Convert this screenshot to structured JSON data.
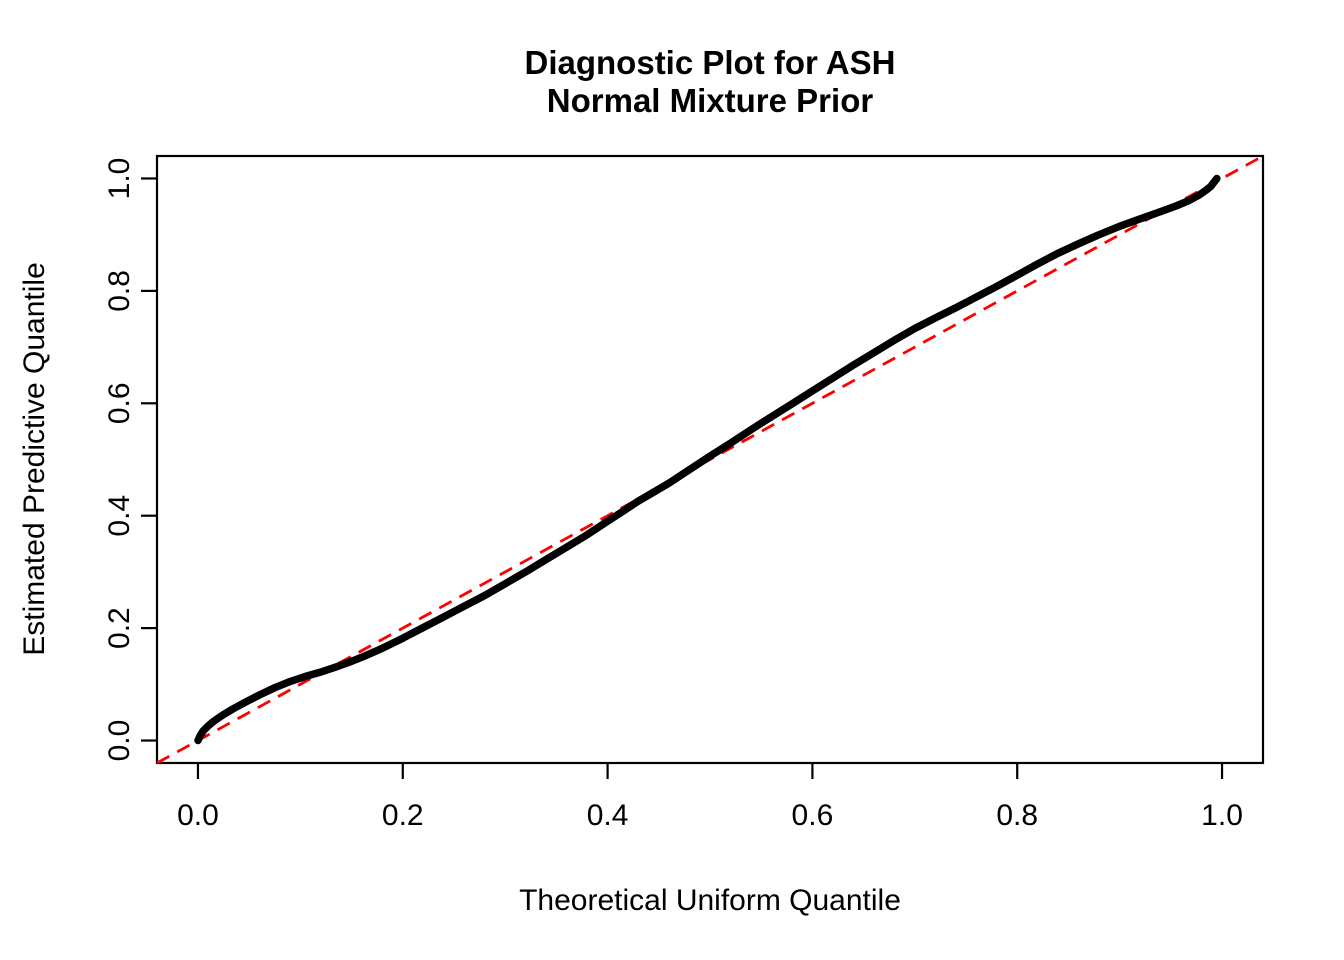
{
  "chart_data": {
    "type": "line",
    "subtype": "qq-plot",
    "title_lines": [
      "Diagnostic Plot for ASH",
      "Normal Mixture Prior"
    ],
    "xlabel": "Theoretical Uniform Quantile",
    "ylabel": "Estimated Predictive Quantile",
    "xlim": [
      -0.04,
      1.04
    ],
    "ylim": [
      -0.04,
      1.04
    ],
    "x_ticks": [
      0.0,
      0.2,
      0.4,
      0.6,
      0.8,
      1.0
    ],
    "x_tick_labels": [
      "0.0",
      "0.2",
      "0.4",
      "0.6",
      "0.8",
      "1.0"
    ],
    "y_ticks": [
      0.0,
      0.2,
      0.4,
      0.6,
      0.8,
      1.0
    ],
    "y_tick_labels": [
      "0.0",
      "0.2",
      "0.4",
      "0.6",
      "0.8",
      "1.0"
    ],
    "grid": false,
    "legend": "none",
    "background_color": "#ffffff",
    "axis_color": "#000000",
    "series": [
      {
        "name": "estimated-vs-theoretical-quantiles",
        "color": "#000000",
        "line_width": 7.5,
        "points": [
          [
            0.0,
            0.0
          ],
          [
            0.002,
            0.008
          ],
          [
            0.005,
            0.017
          ],
          [
            0.01,
            0.026
          ],
          [
            0.016,
            0.035
          ],
          [
            0.024,
            0.045
          ],
          [
            0.034,
            0.056
          ],
          [
            0.046,
            0.068
          ],
          [
            0.06,
            0.081
          ],
          [
            0.075,
            0.094
          ],
          [
            0.09,
            0.105
          ],
          [
            0.105,
            0.114
          ],
          [
            0.12,
            0.122
          ],
          [
            0.135,
            0.131
          ],
          [
            0.15,
            0.141
          ],
          [
            0.165,
            0.152
          ],
          [
            0.18,
            0.164
          ],
          [
            0.2,
            0.182
          ],
          [
            0.22,
            0.201
          ],
          [
            0.24,
            0.22
          ],
          [
            0.26,
            0.239
          ],
          [
            0.28,
            0.258
          ],
          [
            0.3,
            0.279
          ],
          [
            0.32,
            0.3
          ],
          [
            0.34,
            0.322
          ],
          [
            0.36,
            0.344
          ],
          [
            0.38,
            0.366
          ],
          [
            0.4,
            0.39
          ],
          [
            0.415,
            0.408
          ],
          [
            0.43,
            0.426
          ],
          [
            0.445,
            0.442
          ],
          [
            0.46,
            0.458
          ],
          [
            0.48,
            0.482
          ],
          [
            0.5,
            0.506
          ],
          [
            0.52,
            0.529
          ],
          [
            0.54,
            0.553
          ],
          [
            0.56,
            0.576
          ],
          [
            0.58,
            0.599
          ],
          [
            0.6,
            0.622
          ],
          [
            0.62,
            0.645
          ],
          [
            0.64,
            0.668
          ],
          [
            0.66,
            0.69
          ],
          [
            0.68,
            0.712
          ],
          [
            0.7,
            0.733
          ],
          [
            0.72,
            0.752
          ],
          [
            0.74,
            0.77
          ],
          [
            0.76,
            0.789
          ],
          [
            0.78,
            0.808
          ],
          [
            0.8,
            0.828
          ],
          [
            0.82,
            0.848
          ],
          [
            0.84,
            0.867
          ],
          [
            0.86,
            0.884
          ],
          [
            0.88,
            0.9
          ],
          [
            0.9,
            0.915
          ],
          [
            0.92,
            0.928
          ],
          [
            0.94,
            0.941
          ],
          [
            0.955,
            0.951
          ],
          [
            0.968,
            0.961
          ],
          [
            0.978,
            0.971
          ],
          [
            0.985,
            0.98
          ],
          [
            0.989,
            0.986
          ],
          [
            0.992,
            0.993
          ],
          [
            0.995,
            1.0
          ]
        ]
      }
    ],
    "reference_line": {
      "name": "identity-line",
      "style": "dashed",
      "color": "#ff0000",
      "line_width": 2.8,
      "dash_pattern": "14 9",
      "from": [
        -0.04,
        -0.04
      ],
      "to": [
        1.04,
        1.04
      ]
    }
  }
}
